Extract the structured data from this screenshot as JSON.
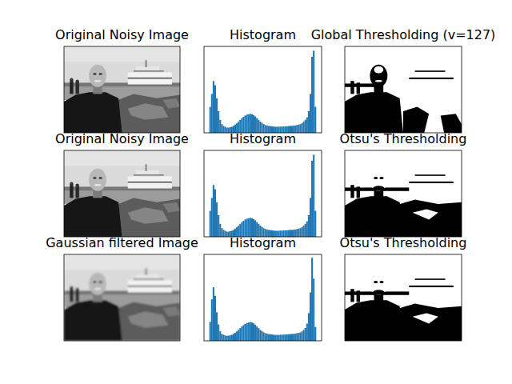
{
  "chart_data": [
    {
      "type": "image",
      "title": "Original Noisy Image",
      "tick_labels": false
    },
    {
      "type": "histogram",
      "title": "Histogram",
      "color": "#1f77b4",
      "tick_labels": false,
      "xlim": [
        -12.8,
        268.8
      ],
      "ylim": [
        0,
        1000
      ],
      "bins": [
        0,
        4,
        8,
        12,
        16,
        20,
        24,
        28,
        32,
        36,
        40,
        44,
        48,
        52,
        56,
        60,
        64,
        68,
        72,
        76,
        80,
        84,
        88,
        92,
        96,
        100,
        104,
        108,
        112,
        116,
        120,
        124,
        128,
        132,
        136,
        140,
        144,
        148,
        152,
        156,
        160,
        164,
        168,
        172,
        176,
        180,
        184,
        188,
        192,
        196,
        200,
        204,
        208,
        212,
        216,
        220,
        224,
        228,
        232,
        236,
        240,
        244,
        248,
        252,
        256
      ],
      "values": [
        300,
        450,
        600,
        550,
        400,
        250,
        150,
        100,
        80,
        70,
        60,
        60,
        65,
        70,
        80,
        95,
        110,
        130,
        150,
        170,
        185,
        200,
        210,
        215,
        220,
        215,
        205,
        190,
        170,
        150,
        130,
        115,
        100,
        90,
        85,
        80,
        78,
        75,
        72,
        70,
        70,
        70,
        72,
        72,
        74,
        75,
        76,
        78,
        80,
        80,
        82,
        85,
        90,
        95,
        100,
        110,
        130,
        150,
        180,
        250,
        450,
        880,
        950,
        300
      ]
    },
    {
      "type": "binary_image",
      "title": "Global Thresholding (v=127)",
      "tick_labels": false
    },
    {
      "type": "image",
      "title": "Original Noisy Image",
      "tick_labels": false
    },
    {
      "type": "histogram",
      "title": "Histogram",
      "color": "#1f77b4",
      "tick_labels": false,
      "xlim": [
        -12.8,
        268.8
      ],
      "ylim": [
        0,
        1000
      ],
      "bins": [
        0,
        4,
        8,
        12,
        16,
        20,
        24,
        28,
        32,
        36,
        40,
        44,
        48,
        52,
        56,
        60,
        64,
        68,
        72,
        76,
        80,
        84,
        88,
        92,
        96,
        100,
        104,
        108,
        112,
        116,
        120,
        124,
        128,
        132,
        136,
        140,
        144,
        148,
        152,
        156,
        160,
        164,
        168,
        172,
        176,
        180,
        184,
        188,
        192,
        196,
        200,
        204,
        208,
        212,
        216,
        220,
        224,
        228,
        232,
        236,
        240,
        244,
        248,
        252,
        256
      ],
      "values": [
        300,
        450,
        600,
        550,
        400,
        250,
        150,
        100,
        80,
        70,
        60,
        60,
        65,
        70,
        80,
        95,
        110,
        130,
        150,
        170,
        185,
        200,
        210,
        215,
        220,
        215,
        205,
        190,
        170,
        150,
        130,
        115,
        100,
        90,
        85,
        80,
        78,
        75,
        72,
        70,
        70,
        70,
        72,
        72,
        74,
        75,
        76,
        78,
        80,
        80,
        82,
        85,
        90,
        95,
        100,
        110,
        130,
        150,
        180,
        250,
        450,
        880,
        950,
        300
      ]
    },
    {
      "type": "binary_image",
      "title": "Otsu's Thresholding",
      "tick_labels": false
    },
    {
      "type": "image",
      "title": "Gaussian filtered Image",
      "tick_labels": false
    },
    {
      "type": "histogram",
      "title": "Histogram",
      "color": "#1f77b4",
      "tick_labels": false,
      "xlim": [
        -12.8,
        268.8
      ],
      "ylim": [
        0,
        1000
      ],
      "bins": [
        0,
        4,
        8,
        12,
        16,
        20,
        24,
        28,
        32,
        36,
        40,
        44,
        48,
        52,
        56,
        60,
        64,
        68,
        72,
        76,
        80,
        84,
        88,
        92,
        96,
        100,
        104,
        108,
        112,
        116,
        120,
        124,
        128,
        132,
        136,
        140,
        144,
        148,
        152,
        156,
        160,
        164,
        168,
        172,
        176,
        180,
        184,
        188,
        192,
        196,
        200,
        204,
        208,
        212,
        216,
        220,
        224,
        228,
        232,
        236,
        240,
        244,
        248,
        252,
        256
      ],
      "values": [
        220,
        480,
        620,
        520,
        330,
        190,
        110,
        80,
        70,
        62,
        58,
        60,
        64,
        70,
        80,
        94,
        110,
        128,
        148,
        166,
        182,
        196,
        206,
        212,
        216,
        212,
        202,
        186,
        166,
        146,
        126,
        112,
        98,
        88,
        82,
        78,
        76,
        73,
        70,
        69,
        68,
        68,
        70,
        71,
        72,
        73,
        74,
        76,
        78,
        79,
        80,
        83,
        88,
        92,
        98,
        108,
        126,
        148,
        200,
        320,
        560,
        960,
        720,
        160
      ]
    },
    {
      "type": "binary_image",
      "title": "Otsu's Thresholding",
      "tick_labels": false
    }
  ]
}
